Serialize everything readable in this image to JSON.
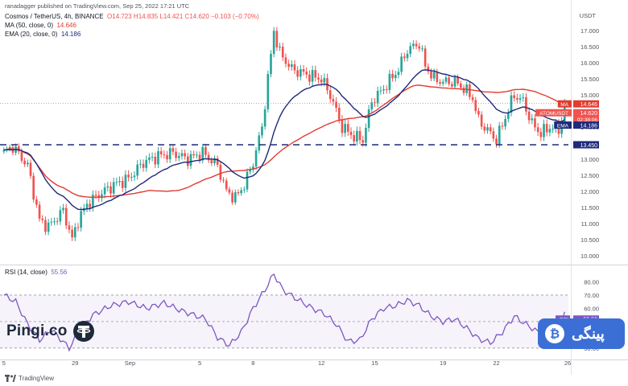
{
  "publisher_line": "ranadagger published on TradingView.com, Sep 25, 2022 17:21 UTC",
  "legend": {
    "symbol": "Cosmos / TetherUS, 4h, BINANCE",
    "ohlc": "O14.723 H14.835 L14.421 C14.620 −0.103 (−0.70%)",
    "ma_label": "MA (50, close, 0)",
    "ma_value": "14.646",
    "ema_label": "EMA (20, close, 0)",
    "ema_value": "14.186",
    "rsi_label": "RSI (14, close)",
    "rsi_value": "55.56"
  },
  "colors": {
    "up": "#26a69a",
    "down": "#ef5350",
    "ma": "#e03c31",
    "ema": "#1f2a7a",
    "rsi": "#7e57c2",
    "support": "#1f2a7a",
    "badge": "#3b6fd6"
  },
  "watermark": {
    "left_brand": "Pingi.co",
    "right_brand": "پینگی",
    "footer": "TradingView"
  },
  "chart_data": {
    "type": "candlestick",
    "title": "Cosmos / TetherUS, 4h, BINANCE",
    "currency_label": "USDT",
    "price_ticks": [
      "17.000",
      "16.500",
      "16.000",
      "15.500",
      "15.000",
      "14.500",
      "14.000",
      "13.500",
      "13.000",
      "12.500",
      "12.000",
      "11.500",
      "11.000",
      "10.500",
      "10.000"
    ],
    "price_range": [
      9.75,
      17.35
    ],
    "rsi_ticks": [
      "80.00",
      "70.00",
      "60.00",
      "50.00",
      "40.00",
      "30.00"
    ],
    "rsi_range": [
      22,
      90
    ],
    "rsi_bands": [
      70,
      30
    ],
    "x_ticks": [
      "5",
      "29",
      "Sep",
      "5",
      "8",
      "12",
      "15",
      "19",
      "22",
      "26"
    ],
    "x_tick_positions": [
      0,
      24,
      42.5,
      66,
      84,
      107,
      125,
      148,
      166,
      190
    ],
    "n_bars": 190,
    "support_level": 13.45,
    "price_tags": [
      {
        "label": "MA",
        "value": "14.646"
      },
      {
        "label": "ATOMUSDT",
        "value": "14.620",
        "sub": "02:38:06"
      },
      {
        "label": "EMA",
        "value": "14.186"
      },
      {
        "label": "",
        "value": "13.450"
      }
    ],
    "rsi_tag": {
      "label": "RSI",
      "value": "55.56"
    },
    "close_anchors": [
      [
        0,
        13.2
      ],
      [
        3,
        13.4
      ],
      [
        8,
        12.8
      ],
      [
        12,
        11.1
      ],
      [
        15,
        10.9
      ],
      [
        20,
        11.4
      ],
      [
        23,
        10.5
      ],
      [
        25,
        11.1
      ],
      [
        28,
        11.6
      ],
      [
        32,
        11.9
      ],
      [
        37,
        12.2
      ],
      [
        42,
        12.4
      ],
      [
        47,
        12.9
      ],
      [
        52,
        13.1
      ],
      [
        57,
        13.2
      ],
      [
        62,
        13.0
      ],
      [
        67,
        13.2
      ],
      [
        72,
        12.8
      ],
      [
        75,
        12.0
      ],
      [
        78,
        11.8
      ],
      [
        81,
        12.2
      ],
      [
        84,
        12.9
      ],
      [
        87,
        14.0
      ],
      [
        89,
        15.5
      ],
      [
        91,
        17.0
      ],
      [
        93,
        16.3
      ],
      [
        97,
        15.8
      ],
      [
        103,
        15.6
      ],
      [
        107,
        15.5
      ],
      [
        110,
        15.0
      ],
      [
        114,
        14.0
      ],
      [
        118,
        13.7
      ],
      [
        121,
        13.6
      ],
      [
        124,
        14.8
      ],
      [
        128,
        15.2
      ],
      [
        133,
        15.8
      ],
      [
        136,
        16.4
      ],
      [
        140,
        16.6
      ],
      [
        142,
        15.9
      ],
      [
        145,
        15.5
      ],
      [
        148,
        15.4
      ],
      [
        152,
        15.4
      ],
      [
        155,
        15.2
      ],
      [
        158,
        14.9
      ],
      [
        160,
        14.2
      ],
      [
        163,
        13.9
      ],
      [
        166,
        13.6
      ],
      [
        169,
        14.3
      ],
      [
        172,
        15.0
      ],
      [
        175,
        14.8
      ],
      [
        178,
        14.1
      ],
      [
        181,
        13.8
      ],
      [
        184,
        14.0
      ],
      [
        187,
        13.9
      ],
      [
        189,
        14.62
      ]
    ],
    "rsi_anchors": [
      [
        0,
        70
      ],
      [
        4,
        65
      ],
      [
        8,
        48
      ],
      [
        12,
        36
      ],
      [
        16,
        44
      ],
      [
        22,
        30
      ],
      [
        26,
        45
      ],
      [
        30,
        55
      ],
      [
        36,
        62
      ],
      [
        42,
        65
      ],
      [
        48,
        60
      ],
      [
        54,
        64
      ],
      [
        60,
        58
      ],
      [
        64,
        55
      ],
      [
        68,
        52
      ],
      [
        72,
        38
      ],
      [
        76,
        32
      ],
      [
        80,
        42
      ],
      [
        84,
        60
      ],
      [
        88,
        74
      ],
      [
        91,
        86
      ],
      [
        94,
        74
      ],
      [
        98,
        68
      ],
      [
        104,
        60
      ],
      [
        108,
        56
      ],
      [
        112,
        48
      ],
      [
        116,
        35
      ],
      [
        120,
        36
      ],
      [
        124,
        52
      ],
      [
        128,
        60
      ],
      [
        132,
        62
      ],
      [
        136,
        66
      ],
      [
        140,
        62
      ],
      [
        144,
        54
      ],
      [
        148,
        50
      ],
      [
        152,
        52
      ],
      [
        156,
        45
      ],
      [
        160,
        37
      ],
      [
        164,
        34
      ],
      [
        168,
        42
      ],
      [
        172,
        54
      ],
      [
        176,
        48
      ],
      [
        180,
        42
      ],
      [
        184,
        44
      ],
      [
        187,
        46
      ],
      [
        189,
        55.56
      ]
    ],
    "rsi_current": 55.56
  }
}
